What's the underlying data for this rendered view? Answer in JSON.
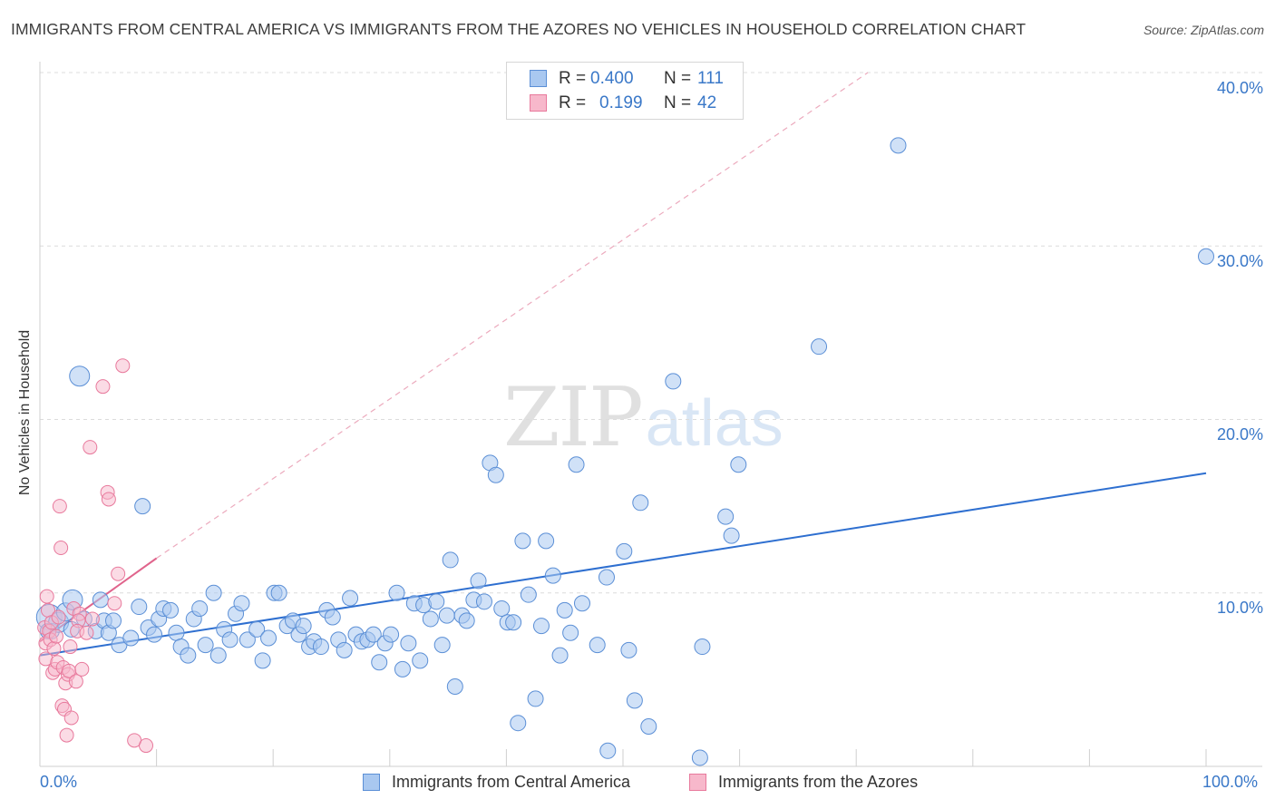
{
  "title": "IMMIGRANTS FROM CENTRAL AMERICA VS IMMIGRANTS FROM THE AZORES NO VEHICLES IN HOUSEHOLD CORRELATION CHART",
  "source": "Source: ZipAtlas.com",
  "watermark": {
    "zip": "ZIP",
    "atlas": "atlas"
  },
  "legend": {
    "series": [
      {
        "r_label": "R =",
        "r_value": "0.400",
        "n_label": "N =",
        "n_value": "111"
      },
      {
        "r_label": "R =",
        "r_value": "0.199",
        "n_label": "N =",
        "n_value": "42"
      }
    ]
  },
  "colors": {
    "blue_fill": "#a9c8f0",
    "blue_stroke": "#5b8fd6",
    "blue_line": "#2e6fd0",
    "pink_fill": "#f7b8cb",
    "pink_stroke": "#e8799c",
    "pink_line": "#e0648c",
    "axis_text": "#3a78c8",
    "grid": "#dcdcdc"
  },
  "chart_data": {
    "type": "scatter",
    "title": "IMMIGRANTS FROM CENTRAL AMERICA VS IMMIGRANTS FROM THE AZORES NO VEHICLES IN HOUSEHOLD CORRELATION CHART",
    "xlabel": "",
    "ylabel": "No Vehicles in Household",
    "xlim": [
      0,
      100
    ],
    "ylim": [
      0,
      40
    ],
    "x_tick_labels": [
      "0.0%",
      "100.0%"
    ],
    "y_tick_labels": [
      "10.0%",
      "20.0%",
      "30.0%",
      "40.0%"
    ],
    "grid": true,
    "legend_position": "bottom",
    "series": [
      {
        "name": "Immigrants from Central America",
        "color": "#a9c8f0",
        "trend": {
          "x": [
            0,
            100
          ],
          "y": [
            6.4,
            16.9
          ],
          "style": "solid"
        },
        "points": [
          [
            0.8,
            8.6
          ],
          [
            1.0,
            7.8
          ],
          [
            1.6,
            8.3
          ],
          [
            2.2,
            8.9
          ],
          [
            2.7,
            7.9
          ],
          [
            3.4,
            22.5
          ],
          [
            2.8,
            9.6
          ],
          [
            3.8,
            8.5
          ],
          [
            4.8,
            7.8
          ],
          [
            5.2,
            9.6
          ],
          [
            5.5,
            8.4
          ],
          [
            5.9,
            7.7
          ],
          [
            6.3,
            8.4
          ],
          [
            6.8,
            7.0
          ],
          [
            7.8,
            7.4
          ],
          [
            8.5,
            9.2
          ],
          [
            8.8,
            15.0
          ],
          [
            9.3,
            8.0
          ],
          [
            9.8,
            7.6
          ],
          [
            10.2,
            8.5
          ],
          [
            10.6,
            9.1
          ],
          [
            11.2,
            9.0
          ],
          [
            11.7,
            7.7
          ],
          [
            12.1,
            6.9
          ],
          [
            12.7,
            6.4
          ],
          [
            13.2,
            8.5
          ],
          [
            13.7,
            9.1
          ],
          [
            14.2,
            7.0
          ],
          [
            14.9,
            10.0
          ],
          [
            15.3,
            6.4
          ],
          [
            15.8,
            7.9
          ],
          [
            16.3,
            7.3
          ],
          [
            16.8,
            8.8
          ],
          [
            17.3,
            9.4
          ],
          [
            17.8,
            7.3
          ],
          [
            18.6,
            7.9
          ],
          [
            19.1,
            6.1
          ],
          [
            19.6,
            7.4
          ],
          [
            20.1,
            10.0
          ],
          [
            20.5,
            10.0
          ],
          [
            21.2,
            8.1
          ],
          [
            21.7,
            8.4
          ],
          [
            22.2,
            7.6
          ],
          [
            22.6,
            8.1
          ],
          [
            23.1,
            6.9
          ],
          [
            23.5,
            7.2
          ],
          [
            24.1,
            6.9
          ],
          [
            24.6,
            9.0
          ],
          [
            25.1,
            8.6
          ],
          [
            25.6,
            7.3
          ],
          [
            26.1,
            6.7
          ],
          [
            26.6,
            9.7
          ],
          [
            27.1,
            7.6
          ],
          [
            27.6,
            7.2
          ],
          [
            28.1,
            7.3
          ],
          [
            28.6,
            7.6
          ],
          [
            29.1,
            6.0
          ],
          [
            29.6,
            7.1
          ],
          [
            30.1,
            7.6
          ],
          [
            30.6,
            10.0
          ],
          [
            31.1,
            5.6
          ],
          [
            31.6,
            7.1
          ],
          [
            32.1,
            9.4
          ],
          [
            32.6,
            6.1
          ],
          [
            32.9,
            9.3
          ],
          [
            33.5,
            8.5
          ],
          [
            34.0,
            9.5
          ],
          [
            34.5,
            7.0
          ],
          [
            34.9,
            8.7
          ],
          [
            35.2,
            11.9
          ],
          [
            35.6,
            4.6
          ],
          [
            36.2,
            8.7
          ],
          [
            36.6,
            8.4
          ],
          [
            37.2,
            9.6
          ],
          [
            37.6,
            10.7
          ],
          [
            38.1,
            9.5
          ],
          [
            38.6,
            17.5
          ],
          [
            39.1,
            16.8
          ],
          [
            39.6,
            9.1
          ],
          [
            40.1,
            8.3
          ],
          [
            40.6,
            8.3
          ],
          [
            41.0,
            2.5
          ],
          [
            41.4,
            13.0
          ],
          [
            41.9,
            9.9
          ],
          [
            42.5,
            3.9
          ],
          [
            43.0,
            8.1
          ],
          [
            43.4,
            13.0
          ],
          [
            44.0,
            11.0
          ],
          [
            44.6,
            6.4
          ],
          [
            45.0,
            9.0
          ],
          [
            45.5,
            7.7
          ],
          [
            46.0,
            17.4
          ],
          [
            46.5,
            9.4
          ],
          [
            47.8,
            7.0
          ],
          [
            48.6,
            10.9
          ],
          [
            48.7,
            0.9
          ],
          [
            50.1,
            12.4
          ],
          [
            50.5,
            6.7
          ],
          [
            51.0,
            3.8
          ],
          [
            51.5,
            15.2
          ],
          [
            52.2,
            2.3
          ],
          [
            54.3,
            22.2
          ],
          [
            56.6,
            0.5
          ],
          [
            56.8,
            6.9
          ],
          [
            58.8,
            14.4
          ],
          [
            59.3,
            13.3
          ],
          [
            59.9,
            17.4
          ],
          [
            66.8,
            24.2
          ],
          [
            73.6,
            35.8
          ],
          [
            100.0,
            29.4
          ],
          [
            0.7,
            7.8
          ]
        ]
      },
      {
        "name": "Immigrants from the Azores",
        "color": "#f7b8cb",
        "trend": {
          "x": [
            0,
            10
          ],
          "y": [
            7.2,
            12.0
          ],
          "style": "solid",
          "extended_x": [
            10,
            71
          ],
          "extended_y": [
            12.0,
            40.0
          ],
          "extended_style": "dashed"
        },
        "points": [
          [
            0.4,
            8.0
          ],
          [
            0.5,
            7.1
          ],
          [
            0.5,
            6.2
          ],
          [
            0.6,
            9.8
          ],
          [
            0.7,
            9.0
          ],
          [
            0.8,
            7.8
          ],
          [
            0.9,
            7.3
          ],
          [
            1.0,
            8.3
          ],
          [
            1.1,
            5.4
          ],
          [
            1.2,
            6.8
          ],
          [
            1.3,
            5.6
          ],
          [
            1.4,
            7.5
          ],
          [
            1.5,
            6.0
          ],
          [
            1.6,
            8.6
          ],
          [
            1.7,
            15.0
          ],
          [
            1.8,
            12.6
          ],
          [
            1.9,
            3.5
          ],
          [
            2.0,
            5.7
          ],
          [
            2.1,
            3.3
          ],
          [
            2.2,
            4.8
          ],
          [
            2.3,
            1.8
          ],
          [
            2.4,
            5.3
          ],
          [
            2.5,
            5.5
          ],
          [
            2.6,
            6.9
          ],
          [
            2.7,
            2.8
          ],
          [
            2.9,
            9.1
          ],
          [
            3.1,
            4.9
          ],
          [
            3.6,
            5.6
          ],
          [
            3.4,
            8.8
          ],
          [
            3.3,
            8.4
          ],
          [
            3.2,
            7.8
          ],
          [
            4.0,
            7.7
          ],
          [
            4.3,
            18.4
          ],
          [
            4.5,
            8.5
          ],
          [
            5.4,
            21.9
          ],
          [
            5.8,
            15.8
          ],
          [
            5.9,
            15.4
          ],
          [
            6.4,
            9.4
          ],
          [
            6.7,
            11.1
          ],
          [
            7.1,
            23.1
          ],
          [
            8.1,
            1.5
          ],
          [
            9.1,
            1.2
          ]
        ]
      }
    ]
  },
  "ticks": {
    "x0": "0.0%",
    "x100": "100.0%",
    "y10": "10.0%",
    "y20": "20.0%",
    "y30": "30.0%",
    "y40": "40.0%"
  },
  "bottom_legend": {
    "blue": "Immigrants from Central America",
    "pink": "Immigrants from the Azores"
  }
}
